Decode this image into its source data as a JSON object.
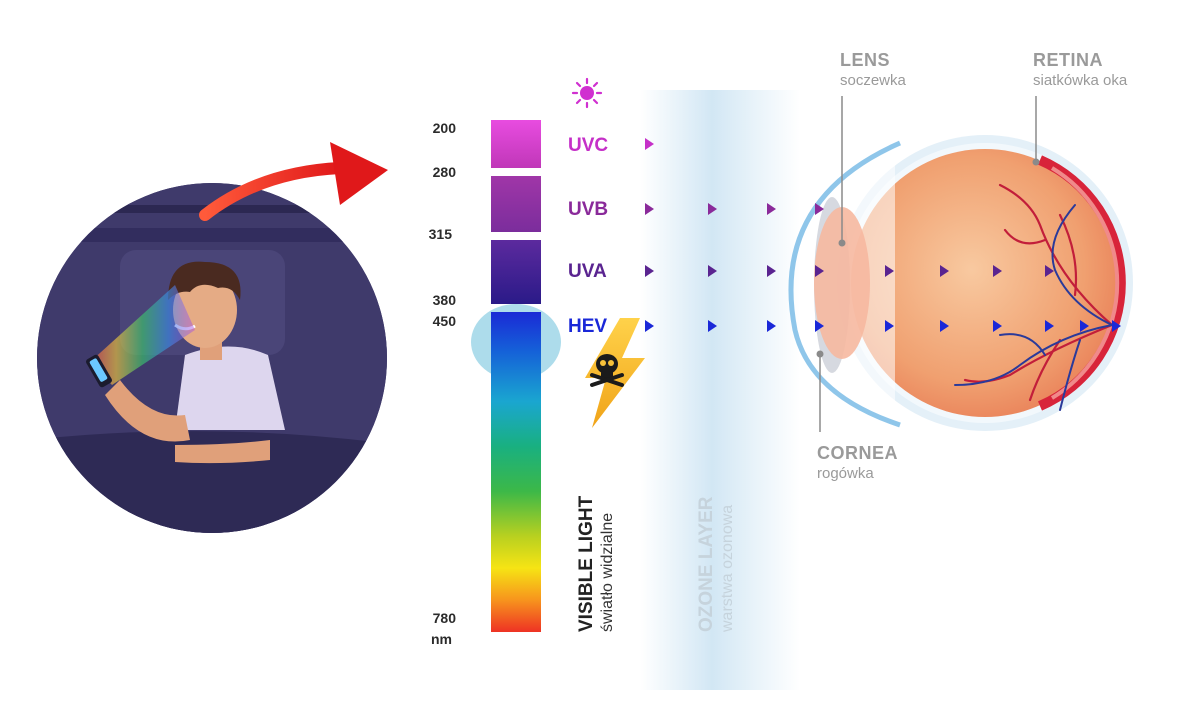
{
  "wavelengths": {
    "w200": "200",
    "w280": "280",
    "w315": "315",
    "w380": "380",
    "w450": "450",
    "w780": "780",
    "unit": "nm"
  },
  "bands": {
    "uvc": "UVC",
    "uvb": "UVB",
    "uva": "UVA",
    "hev": "HEV"
  },
  "colors": {
    "uvc": "#c530c8",
    "uvb": "#8a2a9a",
    "uva": "#5a2490",
    "hev": "#1a28d8"
  },
  "visible": {
    "title": "VISIBLE LIGHT",
    "subtitle": "światło widzialne"
  },
  "ozone": {
    "title": "OZONE LAYER",
    "subtitle": "warstwa ozonowa"
  },
  "eye": {
    "lens_title": "LENS",
    "lens_sub": "soczewka",
    "retina_title": "RETINA",
    "retina_sub": "siatkówka oka",
    "cornea_title": "CORNEA",
    "cornea_sub": "rogówka"
  },
  "icons": {
    "sun": "sun-icon",
    "danger": "skull-lightning-icon"
  }
}
